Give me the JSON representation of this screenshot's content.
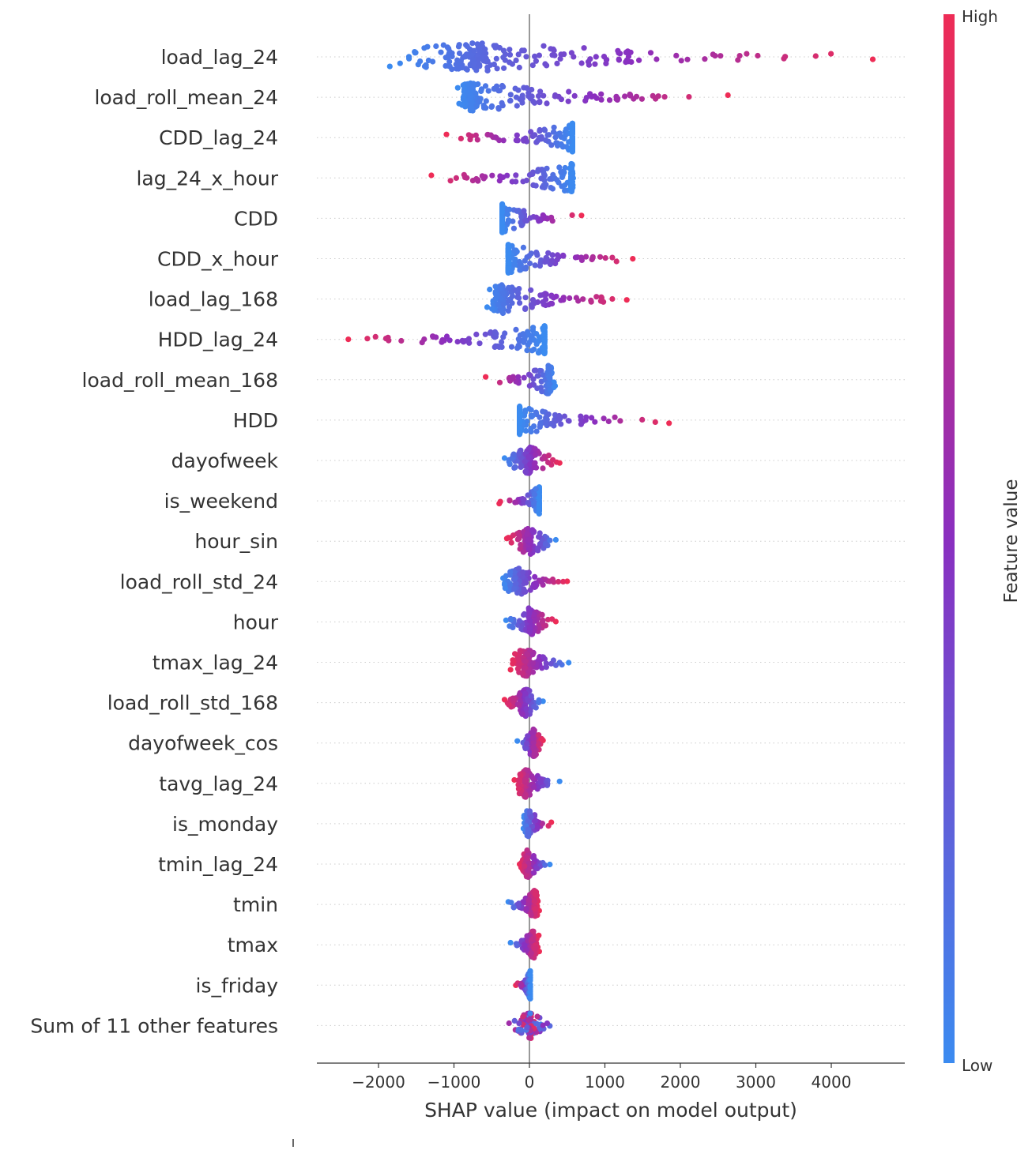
{
  "chart_data": {
    "type": "scatter",
    "subtype": "shap-beeswarm",
    "xlabel": "SHAP value (impact on model output)",
    "xlim": [
      -2800,
      4950
    ],
    "xticks": [
      -2000,
      -1000,
      0,
      1000,
      2000,
      3000,
      4000
    ],
    "xtick_labels": [
      "−2000",
      "−1000",
      "0",
      "1000",
      "2000",
      "3000",
      "4000"
    ],
    "colorbar": {
      "label": "Feature value",
      "high_label": "High",
      "low_label": "Low",
      "low_color": "#3b8bf0",
      "mid_color": "#8a2fc0",
      "high_color": "#ee2c56"
    },
    "features": [
      {
        "name": "load_lag_24",
        "min": -1850,
        "max": 4550,
        "peak": -650,
        "shape": "right-skew",
        "color_trend": "increasing"
      },
      {
        "name": "load_roll_mean_24",
        "min": -950,
        "max": 2630,
        "peak": -750,
        "shape": "right-skew",
        "color_trend": "increasing"
      },
      {
        "name": "CDD_lag_24",
        "min": -1100,
        "max": 570,
        "peak": 570,
        "shape": "left-tail",
        "color_trend": "decreasing"
      },
      {
        "name": "lag_24_x_hour",
        "min": -1300,
        "max": 580,
        "peak": 550,
        "shape": "left-tail",
        "color_trend": "decreasing"
      },
      {
        "name": "CDD",
        "min": -360,
        "max": 690,
        "peak": -360,
        "shape": "right-tail",
        "color_trend": "increasing"
      },
      {
        "name": "CDD_x_hour",
        "min": -280,
        "max": 1370,
        "peak": -280,
        "shape": "right-tail",
        "color_trend": "increasing"
      },
      {
        "name": "load_lag_168",
        "min": -560,
        "max": 1290,
        "peak": -350,
        "shape": "right-skew",
        "color_trend": "increasing"
      },
      {
        "name": "HDD_lag_24",
        "min": -2400,
        "max": 200,
        "peak": 200,
        "shape": "left-tail",
        "color_trend": "decreasing"
      },
      {
        "name": "load_roll_mean_168",
        "min": -580,
        "max": 340,
        "peak": 250,
        "shape": "mixed",
        "color_trend": "decreasing"
      },
      {
        "name": "HDD",
        "min": -130,
        "max": 1850,
        "peak": -130,
        "shape": "right-tail",
        "color_trend": "increasing"
      },
      {
        "name": "dayofweek",
        "min": -330,
        "max": 400,
        "peak": 0,
        "shape": "discrete",
        "color_trend": "increasing"
      },
      {
        "name": "is_weekend",
        "min": -400,
        "max": 130,
        "peak": 130,
        "shape": "two-clusters",
        "color_trend": "decreasing"
      },
      {
        "name": "hour_sin",
        "min": -300,
        "max": 350,
        "peak": 0,
        "shape": "block",
        "color_trend": "decreasing"
      },
      {
        "name": "load_roll_std_24",
        "min": -350,
        "max": 500,
        "peak": -150,
        "shape": "bimodal",
        "color_trend": "increasing"
      },
      {
        "name": "hour",
        "min": -310,
        "max": 350,
        "peak": 0,
        "shape": "block",
        "color_trend": "increasing"
      },
      {
        "name": "tmax_lag_24",
        "min": -250,
        "max": 520,
        "peak": -50,
        "shape": "right-skew",
        "color_trend": "decreasing"
      },
      {
        "name": "load_roll_std_168",
        "min": -330,
        "max": 180,
        "peak": -50,
        "shape": "compact",
        "color_trend": "decreasing"
      },
      {
        "name": "dayofweek_cos",
        "min": -160,
        "max": 180,
        "peak": 50,
        "shape": "compact",
        "color_trend": "increasing"
      },
      {
        "name": "tavg_lag_24",
        "min": -200,
        "max": 400,
        "peak": -50,
        "shape": "right-skew",
        "color_trend": "decreasing"
      },
      {
        "name": "is_monday",
        "min": -80,
        "max": 290,
        "peak": -10,
        "shape": "two-clusters",
        "color_trend": "increasing"
      },
      {
        "name": "tmin_lag_24",
        "min": -130,
        "max": 270,
        "peak": -30,
        "shape": "compact",
        "color_trend": "decreasing"
      },
      {
        "name": "tmin",
        "min": -280,
        "max": 130,
        "peak": 60,
        "shape": "compact",
        "color_trend": "increasing"
      },
      {
        "name": "tmax",
        "min": -250,
        "max": 130,
        "peak": 50,
        "shape": "compact",
        "color_trend": "increasing"
      },
      {
        "name": "is_friday",
        "min": -180,
        "max": 10,
        "peak": 10,
        "shape": "two-clusters",
        "color_trend": "decreasing"
      },
      {
        "name": "Sum of 11 other features",
        "min": -270,
        "max": 270,
        "peak": 0,
        "shape": "compact",
        "color_trend": "mixed"
      }
    ]
  }
}
